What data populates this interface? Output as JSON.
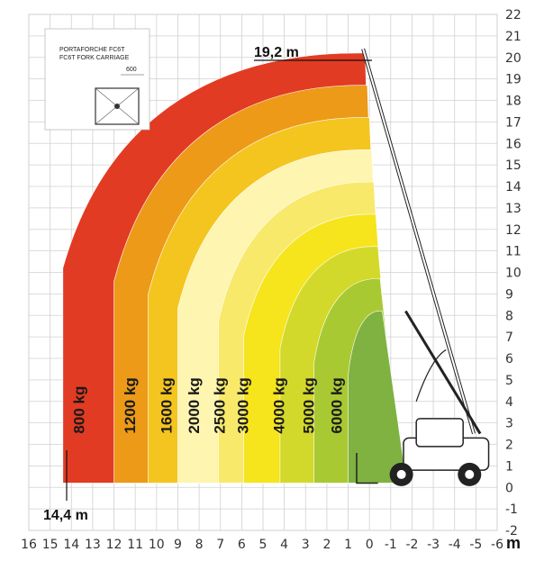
{
  "chart_data": {
    "type": "area",
    "title": "",
    "xlabel": "m",
    "ylabel": "",
    "xlim": [
      16,
      -6
    ],
    "ylim": [
      -2,
      22
    ],
    "x_ticks": [
      16,
      15,
      14,
      13,
      12,
      11,
      10,
      9,
      8,
      7,
      6,
      5,
      4,
      3,
      2,
      1,
      0,
      -1,
      -2,
      -3,
      -4,
      -5,
      -6
    ],
    "y_ticks": [
      -2,
      -1,
      0,
      1,
      2,
      3,
      4,
      5,
      6,
      7,
      8,
      9,
      10,
      11,
      12,
      13,
      14,
      15,
      16,
      17,
      18,
      19,
      20,
      21,
      22
    ],
    "grid": true,
    "zones": [
      {
        "name": "800 kg",
        "color": "#e23b23",
        "max_reach_m": 14.4
      },
      {
        "name": "1200 kg",
        "color": "#ec9a18",
        "max_reach_m": 12.0
      },
      {
        "name": "1600 kg",
        "color": "#f4c51f",
        "max_reach_m": 10.4
      },
      {
        "name": "2000 kg",
        "color": "#fdf5b0",
        "max_reach_m": 9.0
      },
      {
        "name": "2500 kg",
        "color": "#f8e96a",
        "max_reach_m": 7.1
      },
      {
        "name": "3000 kg",
        "color": "#f6e41c",
        "max_reach_m": 5.9
      },
      {
        "name": "4000 kg",
        "color": "#d3d92a",
        "max_reach_m": 4.2
      },
      {
        "name": "5000 kg",
        "color": "#a9c933",
        "max_reach_m": 2.6
      },
      {
        "name": "6000 kg",
        "color": "#7fb241",
        "max_reach_m": 1.0
      }
    ],
    "annotations": {
      "max_height": "19,2 m",
      "max_reach": "14,4 m",
      "inset_title_1": "PORTAFORCHE FC6T",
      "inset_title_2": "FC6T FORK CARRIAGE",
      "inset_dim": "600"
    }
  }
}
